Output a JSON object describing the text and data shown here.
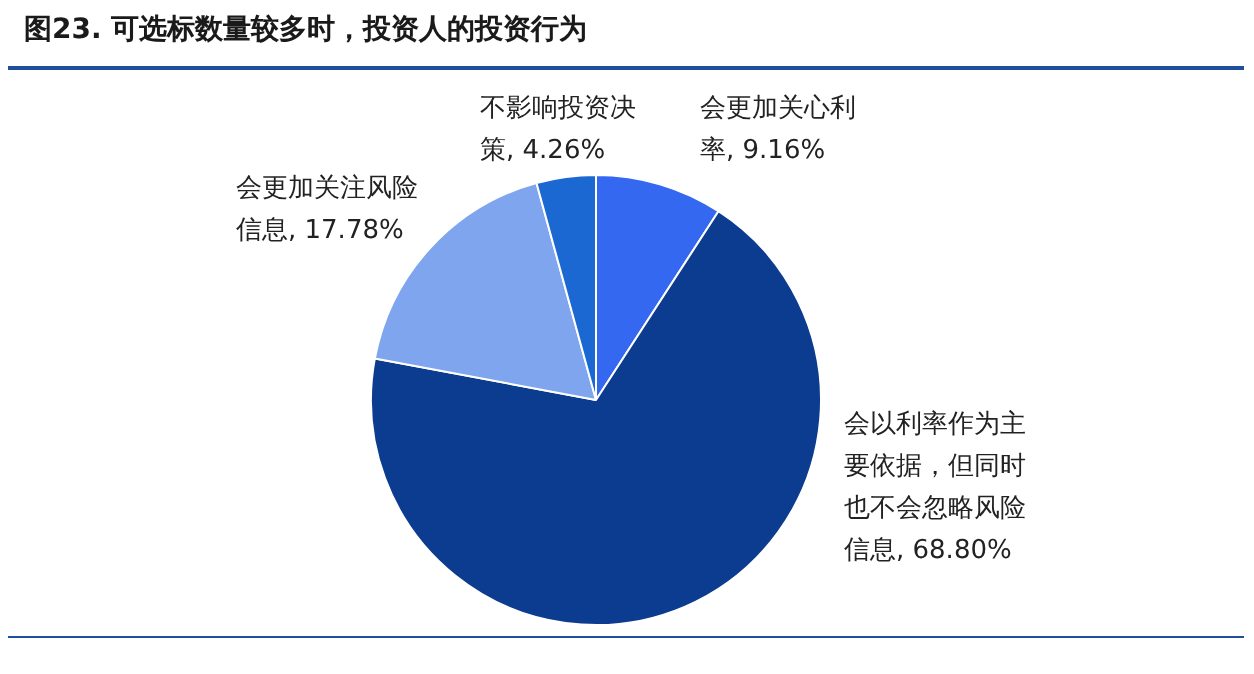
{
  "chart_data": {
    "type": "pie",
    "title": "图23. 可选标数量较多时，投资人的投资行为",
    "categories": [
      "会更加关心利率",
      "会以利率作为主要依据，但同时也不会忽略风险信息",
      "会更加关注风险信息",
      "不影响投资决策"
    ],
    "values": [
      9.16,
      68.8,
      17.78,
      4.26
    ],
    "value_labels": [
      "9.16%",
      "68.80%",
      "17.78%",
      "4.26%"
    ],
    "colors": [
      "#3468f0",
      "#0b3c8f",
      "#7ea5ee",
      "#1b68d2"
    ],
    "legend": false
  }
}
